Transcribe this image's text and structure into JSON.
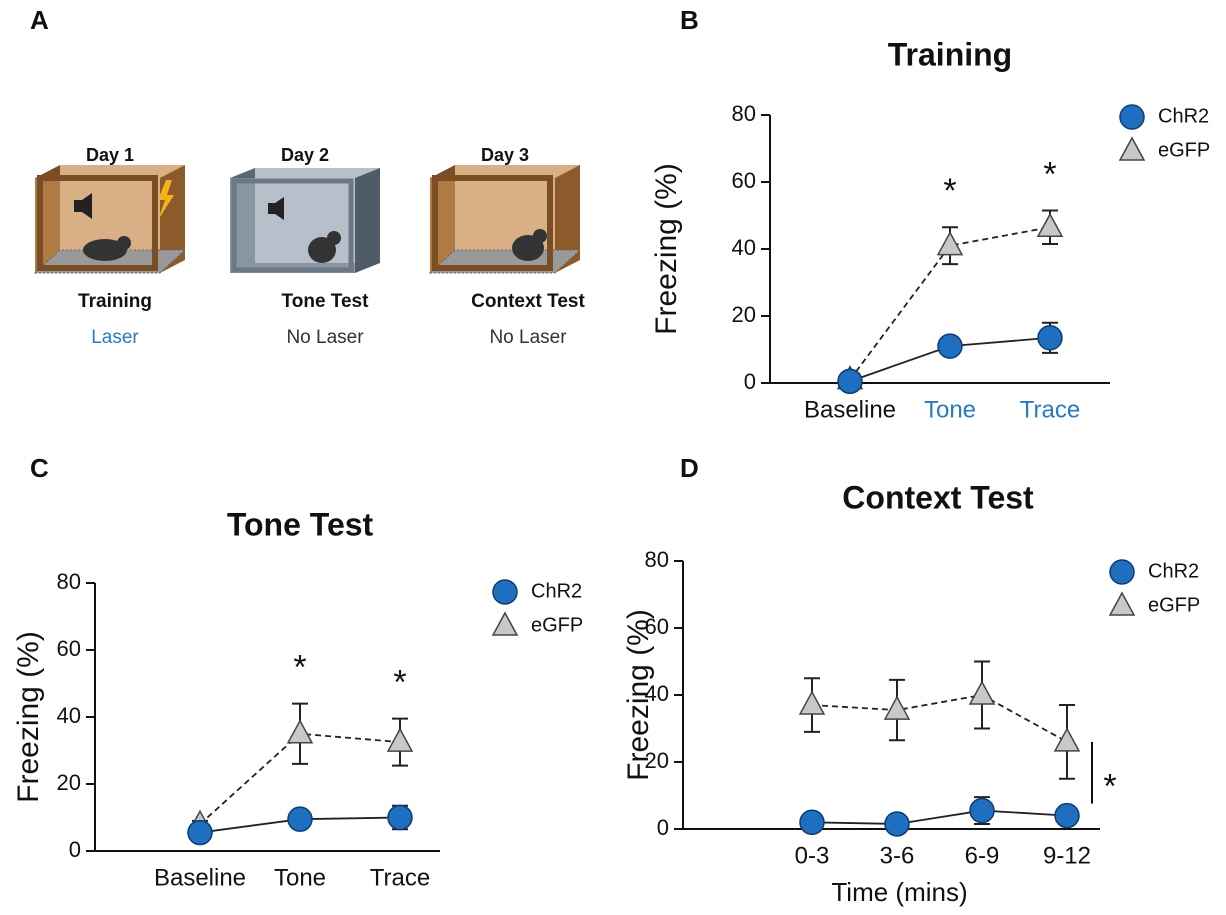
{
  "panel_labels": [
    "A",
    "B",
    "C",
    "D"
  ],
  "schematic": {
    "days": [
      {
        "day": "Day 1",
        "session": "Training",
        "laser": "Laser"
      },
      {
        "day": "Day 2",
        "session": "Tone Test",
        "laser": "No Laser"
      },
      {
        "day": "Day 3",
        "session": "Context Test",
        "laser": "No Laser"
      }
    ]
  },
  "chart_data": [
    {
      "type": "line",
      "title": "Training",
      "y_label": "Freezing (%)",
      "categories": [
        "Baseline",
        "Tone",
        "Trace"
      ],
      "category_colors": [
        "#111111",
        "#2a7ac0",
        "#2a7ac0"
      ],
      "ylim": [
        0,
        80
      ],
      "yticks": [
        0,
        20,
        40,
        60,
        80
      ],
      "series": [
        {
          "name": "ChR2",
          "color": "#1f6fc0",
          "marker": "circle",
          "dashed": false,
          "values": [
            0.5,
            11,
            13.5
          ],
          "errors": [
            0.5,
            1,
            4.5
          ]
        },
        {
          "name": "eGFP",
          "color": "#c8c8c8",
          "marker": "triangle",
          "dashed": true,
          "values": [
            1,
            41,
            46.5
          ],
          "errors": [
            1,
            5.5,
            5
          ]
        }
      ],
      "annotations": [
        {
          "text": "*",
          "category": "Tone"
        },
        {
          "text": "*",
          "category": "Trace"
        }
      ]
    },
    {
      "type": "line",
      "title": "Tone Test",
      "y_label": "Freezing (%)",
      "categories": [
        "Baseline",
        "Tone",
        "Trace"
      ],
      "ylim": [
        0,
        80
      ],
      "yticks": [
        0,
        20,
        40,
        60,
        80
      ],
      "series": [
        {
          "name": "ChR2",
          "color": "#1f6fc0",
          "marker": "circle",
          "dashed": false,
          "values": [
            5.5,
            9.5,
            10
          ],
          "errors": [
            1,
            1,
            3.5
          ]
        },
        {
          "name": "eGFP",
          "color": "#c8c8c8",
          "marker": "triangle",
          "dashed": true,
          "values": [
            8,
            35,
            32.5
          ],
          "errors": [
            1,
            9,
            7
          ]
        }
      ],
      "annotations": [
        {
          "text": "*",
          "category": "Tone"
        },
        {
          "text": "*",
          "category": "Trace"
        }
      ]
    },
    {
      "type": "line",
      "title": "Context Test",
      "y_label": "Freezing (%)",
      "x_label": "Time (mins)",
      "categories": [
        "0-3",
        "3-6",
        "6-9",
        "9-12"
      ],
      "ylim": [
        0,
        80
      ],
      "yticks": [
        0,
        20,
        40,
        60,
        80
      ],
      "series": [
        {
          "name": "ChR2",
          "color": "#1f6fc0",
          "marker": "circle",
          "dashed": false,
          "values": [
            2,
            1.5,
            5.5,
            4
          ],
          "errors": [
            0.5,
            0.5,
            4,
            1
          ]
        },
        {
          "name": "eGFP",
          "color": "#c8c8c8",
          "marker": "triangle",
          "dashed": true,
          "values": [
            37,
            35.5,
            40,
            26
          ],
          "errors": [
            8,
            9,
            10,
            11
          ]
        }
      ],
      "annotations": [
        {
          "text": "*",
          "bracket": true
        }
      ]
    }
  ]
}
